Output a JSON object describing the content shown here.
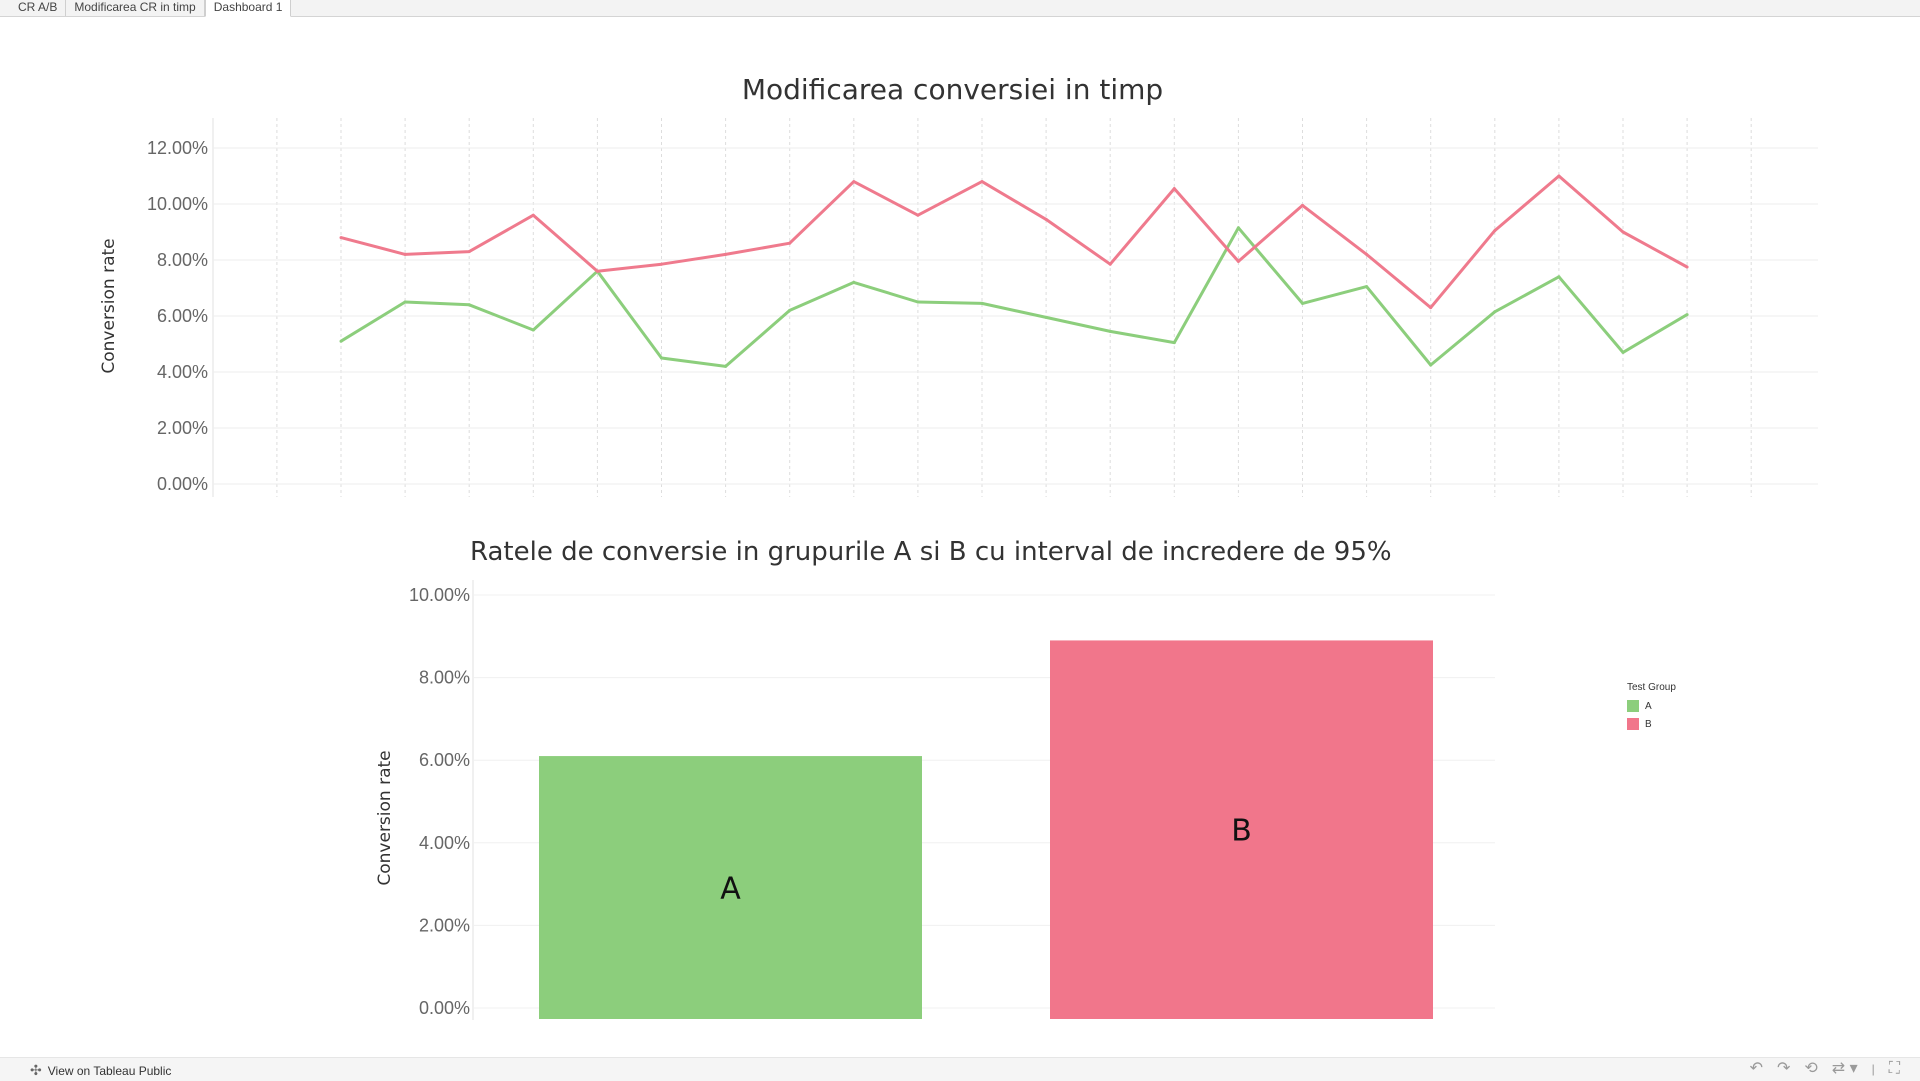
{
  "tabs": [
    {
      "label": "CR A/B"
    },
    {
      "label": "Modificarea CR in timp"
    },
    {
      "label": "Dashboard 1"
    }
  ],
  "footer": {
    "view_label": "View on Tableau Public"
  },
  "chart_data": [
    {
      "type": "line",
      "title": "Modificarea conversiei in timp",
      "ylabel": "Conversion rate",
      "xlabel": "",
      "ylim": [
        0,
        12
      ],
      "yticks": [
        "0.00%",
        "2.00%",
        "4.00%",
        "6.00%",
        "8.00%",
        "10.00%",
        "12.00%"
      ],
      "grid": true,
      "series": [
        {
          "name": "A",
          "color": "#8cce7c",
          "values": [
            5.1,
            6.5,
            6.4,
            5.5,
            7.6,
            4.5,
            4.2,
            6.2,
            7.2,
            6.5,
            6.45,
            5.95,
            5.45,
            5.05,
            9.15,
            6.45,
            7.05,
            4.25,
            6.15,
            7.4,
            4.7,
            6.05
          ]
        },
        {
          "name": "B",
          "color": "#ef7a8d",
          "values": [
            8.8,
            8.2,
            8.3,
            9.6,
            7.6,
            7.85,
            8.2,
            8.6,
            10.8,
            9.6,
            10.8,
            9.45,
            7.85,
            10.55,
            7.95,
            9.95,
            8.2,
            6.3,
            9.05,
            11.0,
            9.0,
            7.75
          ]
        }
      ]
    },
    {
      "type": "bar",
      "title": "Ratele de conversie in grupurile A si B cu interval de incredere de 95%",
      "ylabel": "Conversion rate",
      "xlabel": "",
      "ylim": [
        0,
        10
      ],
      "yticks": [
        "0.00%",
        "2.00%",
        "4.00%",
        "6.00%",
        "8.00%",
        "10.00%"
      ],
      "categories": [
        "A",
        "B"
      ],
      "values": [
        6.1,
        8.9
      ],
      "colors": [
        "#8cce7c",
        "#f1768b"
      ],
      "legend": {
        "title": "Test Group",
        "entries": [
          "A",
          "B"
        ],
        "position": "right"
      }
    }
  ]
}
